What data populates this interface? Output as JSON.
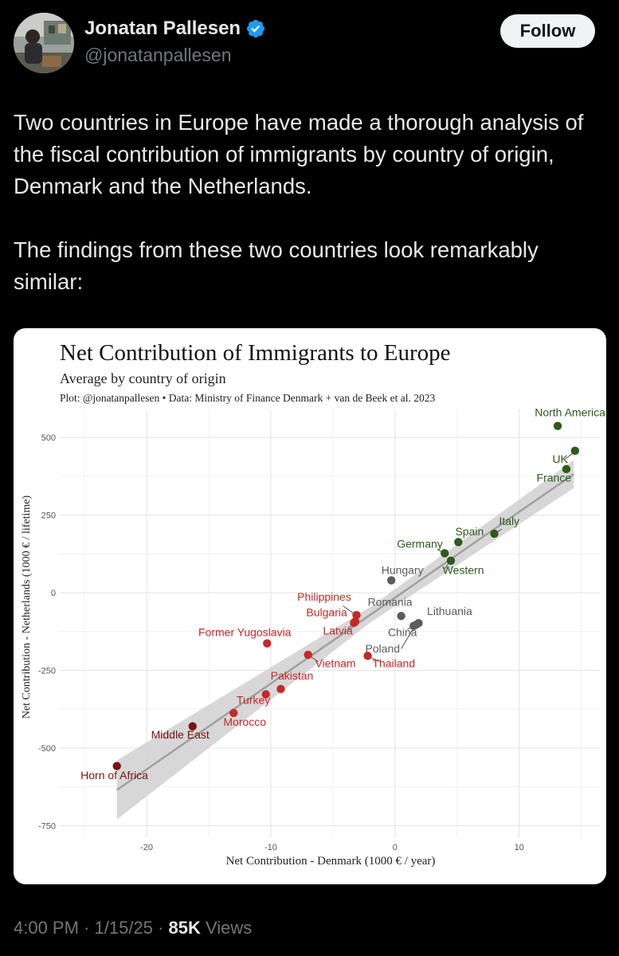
{
  "author": {
    "name": "Jonatan Pallesen",
    "handle": "@jonatanpallesen",
    "verified_icon": "verified-badge-icon",
    "accent": "#1d9bf0"
  },
  "follow_label": "Follow",
  "tweet": {
    "paragraph1": "Two countries in Europe have made a thorough analysis of the fiscal contribution of immigrants by country of origin, Denmark and the Netherlands.",
    "paragraph2": "The findings from these two countries look remarkably similar:"
  },
  "meta": {
    "time": "4:00 PM",
    "date": "1/15/25",
    "views_count": "85K",
    "views_label": "Views",
    "separator": "·"
  },
  "chart_data": {
    "type": "scatter",
    "title": "Net Contribution of Immigrants to Europe",
    "subtitle": "Average by country of origin",
    "caption": "Plot: @jonatanpallesen • Data: Ministry of Finance Denmark + van de Beek et al. 2023",
    "xlabel": "Net Contribution - Denmark (1000 € / year)",
    "ylabel": "Net Contribution - Netherlands (1000 € / lifetime)",
    "xlim": [
      -27,
      16.5
    ],
    "ylim": [
      -790,
      590
    ],
    "xticks": [
      -20,
      -10,
      0,
      10
    ],
    "yticks": [
      500,
      250,
      0,
      -250,
      -500,
      -750
    ],
    "xtick_labels": [
      "-20",
      "-10",
      "0",
      "10"
    ],
    "ytick_labels": [
      "500",
      "250",
      "0",
      "-250",
      "-500",
      "-750"
    ],
    "grid": true,
    "trend": {
      "x": [
        -22.4,
        14.4
      ],
      "y": [
        -635,
        382
      ],
      "band_low_half": 95,
      "band_high_half": 45,
      "band_mid_half": 25
    },
    "colors": {
      "dark_red": "#7a1212",
      "red": "#c62828",
      "grey": "#5c5c5c",
      "green": "#2e5a1c",
      "trend": "#9e9e9e",
      "band": "#d0d0d0"
    },
    "points": [
      {
        "label": "North America",
        "x": 13.1,
        "y": 537,
        "color": "green",
        "lx": 14.1,
        "ly": 568,
        "anchor": "middle"
      },
      {
        "label": "UK",
        "x": 14.5,
        "y": 457,
        "color": "green",
        "lx": 13.3,
        "ly": 418,
        "anchor": "middle"
      },
      {
        "label": "France",
        "x": 13.8,
        "y": 398,
        "color": "green",
        "lx": 12.8,
        "ly": 358,
        "anchor": "middle"
      },
      {
        "label": "Italy",
        "x": 8.0,
        "y": 190,
        "color": "green",
        "lx": 9.2,
        "ly": 218,
        "anchor": "middle"
      },
      {
        "label": "Spain",
        "x": 5.1,
        "y": 163,
        "color": "green",
        "lx": 6.0,
        "ly": 185,
        "anchor": "middle"
      },
      {
        "label": "Germany",
        "x": 4.0,
        "y": 127,
        "color": "green",
        "lx": 2.0,
        "ly": 145,
        "anchor": "middle"
      },
      {
        "label": "Western",
        "x": 4.5,
        "y": 103,
        "color": "green",
        "lx": 5.5,
        "ly": 60,
        "anchor": "middle"
      },
      {
        "label": "Hungary",
        "x": -0.3,
        "y": 40,
        "color": "grey",
        "lx": 0.6,
        "ly": 60,
        "anchor": "middle"
      },
      {
        "label": "Romania",
        "x": 0.5,
        "y": -75,
        "color": "grey",
        "lx": -0.4,
        "ly": -42,
        "anchor": "middle"
      },
      {
        "label": "Lithuania",
        "x": 1.9,
        "y": -98,
        "color": "grey",
        "lx": 4.4,
        "ly": -72,
        "anchor": "middle"
      },
      {
        "label": "China",
        "x": 1.7,
        "y": -103,
        "color": "grey",
        "lx": 0.6,
        "ly": -140,
        "anchor": "middle"
      },
      {
        "label": "Poland",
        "x": 1.5,
        "y": -107,
        "color": "grey",
        "lx": -1.0,
        "ly": -192,
        "anchor": "middle"
      },
      {
        "label": "Philippines",
        "x": -3.1,
        "y": -72,
        "color": "red",
        "lx": -5.7,
        "ly": -25,
        "anchor": "middle"
      },
      {
        "label": "Bulgaria",
        "x": -3.2,
        "y": -93,
        "color": "red",
        "lx": -5.5,
        "ly": -75,
        "anchor": "middle"
      },
      {
        "label": "Latvia",
        "x": -3.3,
        "y": -97,
        "color": "red",
        "lx": -4.6,
        "ly": -135,
        "anchor": "middle"
      },
      {
        "label": "Former Yugoslavia",
        "x": -10.3,
        "y": -163,
        "color": "red",
        "lx": -12.1,
        "ly": -140,
        "anchor": "middle"
      },
      {
        "label": "Vietnam",
        "x": -7.0,
        "y": -200,
        "color": "red",
        "lx": -4.8,
        "ly": -240,
        "anchor": "middle"
      },
      {
        "label": "Thailand",
        "x": -2.2,
        "y": -203,
        "color": "red",
        "lx": -0.1,
        "ly": -240,
        "anchor": "middle"
      },
      {
        "label": "Pakistan",
        "x": -9.2,
        "y": -310,
        "color": "red",
        "lx": -8.3,
        "ly": -280,
        "anchor": "middle"
      },
      {
        "label": "Turkey",
        "x": -10.4,
        "y": -327,
        "color": "red",
        "lx": -11.4,
        "ly": -358,
        "anchor": "middle"
      },
      {
        "label": "Morocco",
        "x": -13.0,
        "y": -387,
        "color": "red",
        "lx": -12.1,
        "ly": -428,
        "anchor": "middle"
      },
      {
        "label": "Middle East",
        "x": -16.3,
        "y": -430,
        "color": "dark_red",
        "lx": -17.3,
        "ly": -470,
        "anchor": "middle"
      },
      {
        "label": "Horn of Africa",
        "x": -22.4,
        "y": -558,
        "color": "dark_red",
        "lx": -22.6,
        "ly": -600,
        "anchor": "middle"
      }
    ],
    "leader_lines": [
      {
        "from": "Philippines",
        "x1": -4.2,
        "y1": -42,
        "x2": -3.2,
        "y2": -70
      },
      {
        "from": "Latvia",
        "x1": -3.8,
        "y1": -115,
        "x2": -3.3,
        "y2": -98
      },
      {
        "from": "China",
        "x1": 1.0,
        "y1": -118,
        "x2": 1.6,
        "y2": -104
      },
      {
        "from": "Poland",
        "x1": 0.5,
        "y1": -180,
        "x2": 1.4,
        "y2": -120
      },
      {
        "from": "Thailand",
        "x1": -1.2,
        "y1": -222,
        "x2": -2.1,
        "y2": -206
      },
      {
        "from": "Vietnam",
        "x1": -6.2,
        "y1": -222,
        "x2": -6.9,
        "y2": -202
      },
      {
        "from": "Italy",
        "x1": 8.6,
        "y1": 205,
        "x2": 8.1,
        "y2": 193
      },
      {
        "from": "Germany",
        "x1": 3.4,
        "y1": 140,
        "x2": 3.9,
        "y2": 129
      },
      {
        "from": "Western",
        "x1": 4.0,
        "y1": 77,
        "x2": 4.4,
        "y2": 100
      },
      {
        "from": "UK",
        "x1": 13.7,
        "y1": 430,
        "x2": 14.4,
        "y2": 452
      }
    ]
  }
}
